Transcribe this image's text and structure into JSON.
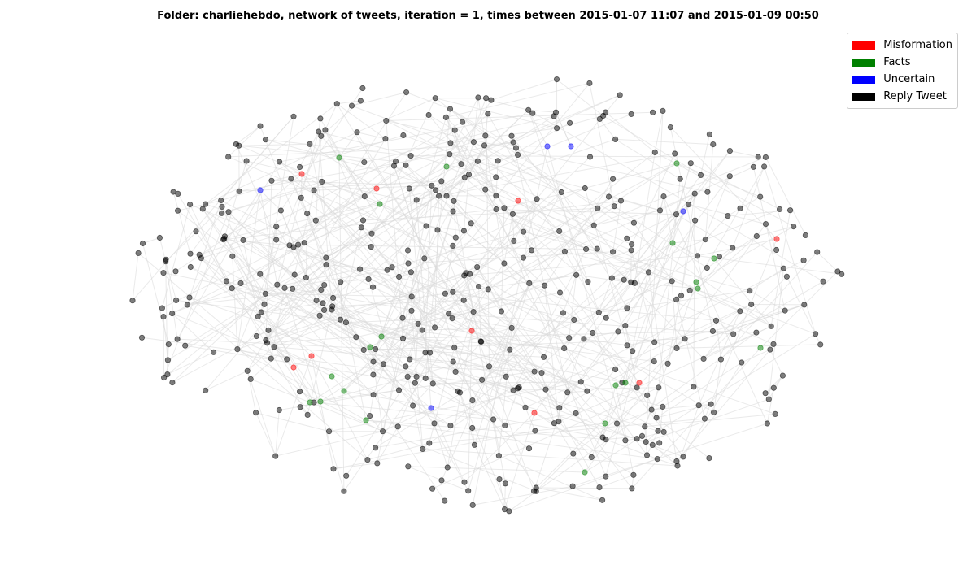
{
  "title": "Folder: charliehebdo, network of tweets, iteration = 1, times between 2015-01-07 11:07 and 2015-01-09 00:50",
  "legend": [
    {
      "label": "Misformation",
      "color": "#ff0000"
    },
    {
      "label": "Facts",
      "color": "#008000"
    },
    {
      "label": "Uncertain",
      "color": "#0000ff"
    },
    {
      "label": "Reply Tweet",
      "color": "#000000"
    }
  ],
  "colors": {
    "misinformation": "#ff0000",
    "facts": "#008000",
    "uncertain": "#0000ff",
    "reply": "#000000",
    "edge": "#d9d9d9"
  }
}
